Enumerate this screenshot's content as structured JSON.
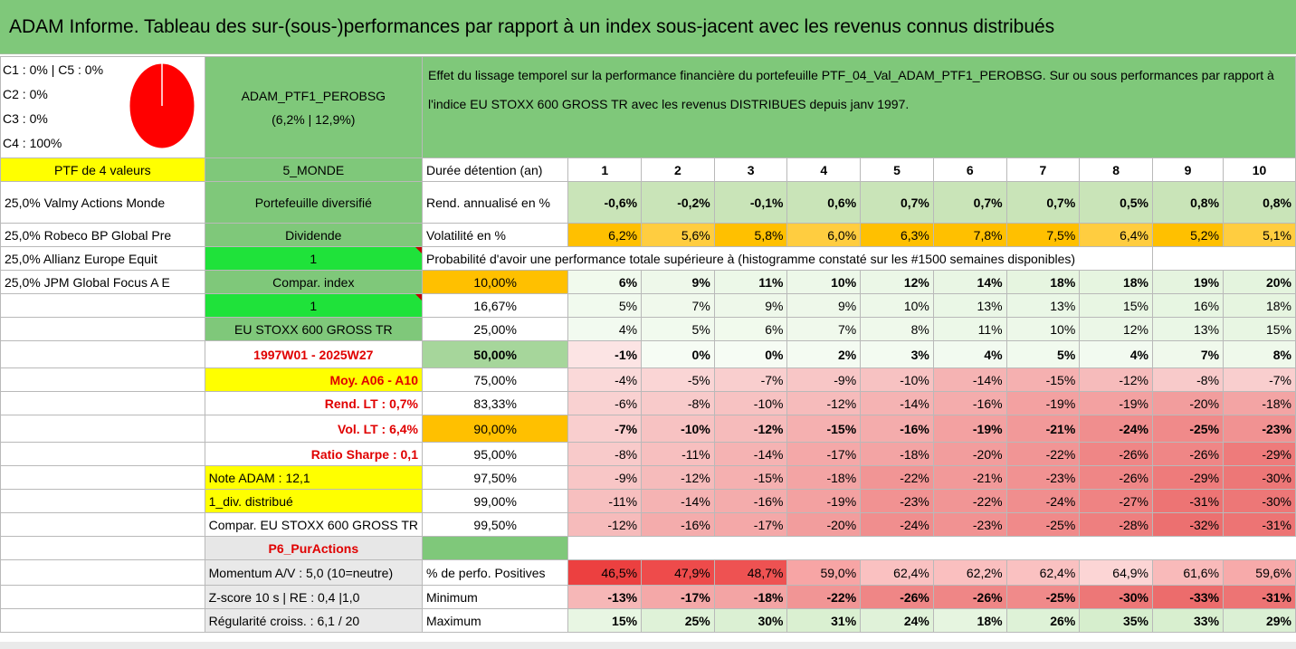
{
  "title": "ADAM Informe. Tableau des sur-(sous-)performances par rapport à un index sous-jacent avec les revenus connus distribués",
  "composition": [
    "C1 : 0% | C5 : 0%",
    "C2 : 0%",
    "C3 : 0%",
    "C4 : 100%"
  ],
  "pie_color": "#ff0000",
  "portfolio": {
    "name": "ADAM_PTF1_PEROBSG",
    "stats": "(6,2% | 12,9%)"
  },
  "description": "Effet du lissage temporel sur la performance financière du portefeuille PTF_04_Val_ADAM_PTF1_PEROBSG. Sur ou sous performances par rapport à l'indice EU STOXX 600 GROSS TR avec les revenus DISTRIBUES depuis janv 1997.",
  "ptf_count": "PTF de 4 valeurs",
  "zone": "5_MONDE",
  "holdings": [
    "25,0% Valmy Actions Monde",
    "25,0% Robeco BP Global Pre",
    "25,0% Allianz Europe Equit",
    "25,0% JPM Global Focus A E"
  ],
  "side": {
    "diversified": "Portefeuille diversifié",
    "dividend": "Dividende",
    "dividend_value": "1",
    "compar_index": "Compar. index",
    "compar_value": "1",
    "index_name": "EU STOXX 600 GROSS TR",
    "period": "1997W01 - 2025W27",
    "moy": "Moy. A06 - A10",
    "rend_lt": "Rend. LT : 0,7%",
    "vol_lt": "Vol. LT : 6,4%",
    "sharpe": "Ratio Sharpe : 0,1",
    "note": "Note ADAM : 12,1",
    "div": "1_div. distribué",
    "compar_full": "Compar. EU STOXX 600 GROSS TR",
    "p6": "P6_PurActions",
    "momentum": "Momentum A/V : 5,0 (10=neutre)",
    "zscore": "Z-score 10 s | RE : 0,4 |1,0",
    "regul": "Régularité croiss. : 6,1 / 20"
  },
  "header_label": "Durée détention (an)",
  "years": [
    "1",
    "2",
    "3",
    "4",
    "5",
    "6",
    "7",
    "8",
    "9",
    "10"
  ],
  "rend": {
    "label": "Rend. annualisé en %",
    "values": [
      "-0,6%",
      "-0,2%",
      "-0,1%",
      "0,6%",
      "0,7%",
      "0,7%",
      "0,7%",
      "0,5%",
      "0,8%",
      "0,8%"
    ]
  },
  "vol": {
    "label": "Volatilité en %",
    "values": [
      "6,2%",
      "5,6%",
      "5,8%",
      "6,0%",
      "6,3%",
      "7,8%",
      "7,5%",
      "6,4%",
      "5,2%",
      "5,1%"
    ]
  },
  "prob_title": "Probabilité d'avoir une performance totale supérieure à (histogramme constaté sur les #1500 semaines disponibles)",
  "prob_rows": [
    {
      "p": "10,00%",
      "values": [
        "6%",
        "9%",
        "11%",
        "10%",
        "12%",
        "14%",
        "18%",
        "18%",
        "19%",
        "20%"
      ]
    },
    {
      "p": "16,67%",
      "values": [
        "5%",
        "7%",
        "9%",
        "9%",
        "10%",
        "13%",
        "13%",
        "15%",
        "16%",
        "18%"
      ]
    },
    {
      "p": "25,00%",
      "values": [
        "4%",
        "5%",
        "6%",
        "7%",
        "8%",
        "11%",
        "10%",
        "12%",
        "13%",
        "15%"
      ]
    },
    {
      "p": "50,00%",
      "values": [
        "-1%",
        "0%",
        "0%",
        "2%",
        "3%",
        "4%",
        "5%",
        "4%",
        "7%",
        "8%"
      ]
    },
    {
      "p": "75,00%",
      "values": [
        "-4%",
        "-5%",
        "-7%",
        "-9%",
        "-10%",
        "-14%",
        "-15%",
        "-12%",
        "-8%",
        "-7%"
      ]
    },
    {
      "p": "83,33%",
      "values": [
        "-6%",
        "-8%",
        "-10%",
        "-12%",
        "-14%",
        "-16%",
        "-19%",
        "-19%",
        "-20%",
        "-18%"
      ]
    },
    {
      "p": "90,00%",
      "values": [
        "-7%",
        "-10%",
        "-12%",
        "-15%",
        "-16%",
        "-19%",
        "-21%",
        "-24%",
        "-25%",
        "-23%"
      ]
    },
    {
      "p": "95,00%",
      "values": [
        "-8%",
        "-11%",
        "-14%",
        "-17%",
        "-18%",
        "-20%",
        "-22%",
        "-26%",
        "-26%",
        "-29%"
      ]
    },
    {
      "p": "97,50%",
      "values": [
        "-9%",
        "-12%",
        "-15%",
        "-18%",
        "-22%",
        "-21%",
        "-23%",
        "-26%",
        "-29%",
        "-30%"
      ]
    },
    {
      "p": "99,00%",
      "values": [
        "-11%",
        "-14%",
        "-16%",
        "-19%",
        "-23%",
        "-22%",
        "-24%",
        "-27%",
        "-31%",
        "-30%"
      ]
    },
    {
      "p": "99,50%",
      "values": [
        "-12%",
        "-16%",
        "-17%",
        "-20%",
        "-24%",
        "-23%",
        "-25%",
        "-28%",
        "-32%",
        "-31%"
      ]
    }
  ],
  "positives": {
    "label": "% de perfo. Positives",
    "values": [
      "46,5%",
      "47,9%",
      "48,7%",
      "59,0%",
      "62,4%",
      "62,2%",
      "62,4%",
      "64,9%",
      "61,6%",
      "59,6%"
    ]
  },
  "minimum": {
    "label": "Minimum",
    "values": [
      "-13%",
      "-17%",
      "-18%",
      "-22%",
      "-26%",
      "-26%",
      "-25%",
      "-30%",
      "-33%",
      "-31%"
    ]
  },
  "maximum": {
    "label": "Maximum",
    "values": [
      "15%",
      "25%",
      "30%",
      "31%",
      "24%",
      "18%",
      "26%",
      "35%",
      "33%",
      "29%"
    ]
  }
}
